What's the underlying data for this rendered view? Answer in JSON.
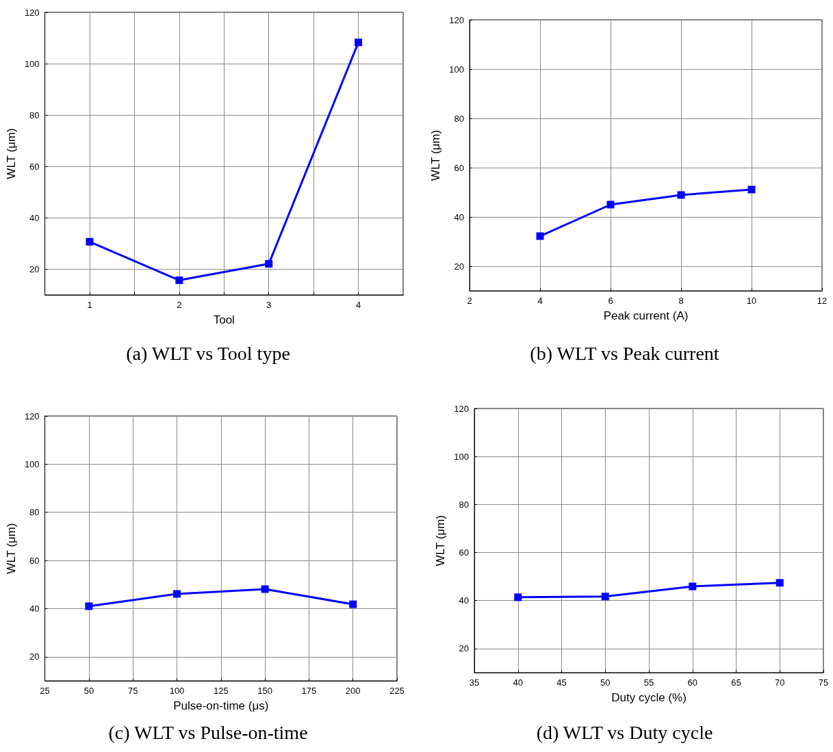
{
  "chart_data": [
    {
      "type": "line",
      "title": "(a) WLT vs Tool type",
      "xlabel": "Tool",
      "ylabel": "WLT (μm)",
      "x": [
        1,
        2,
        3,
        4
      ],
      "series": [
        {
          "color": "#0000ff",
          "values": [
            30.7,
            15.7,
            22.1,
            108.3
          ]
        }
      ],
      "xlim": [
        0.5,
        4.5
      ],
      "xticks": [
        1,
        {
          "value": 1.5,
          "label": null
        },
        2,
        {
          "value": 2.5,
          "label": null
        },
        3,
        {
          "value": 3.5,
          "label": null
        },
        4
      ],
      "ylim": [
        10,
        120
      ],
      "yticks": [
        20,
        40,
        60,
        80,
        100,
        120
      ],
      "grid": true,
      "marker": "square",
      "line_style": "solid"
    },
    {
      "type": "line",
      "title": "(b) WLT vs Peak current",
      "xlabel": "Peak current (A)",
      "ylabel": "WLT (μm)",
      "x": [
        4,
        6,
        8,
        10
      ],
      "series": [
        {
          "color": "#0000ff",
          "values": [
            32.2,
            45,
            48.9,
            51.1
          ]
        }
      ],
      "xlim": [
        2,
        12
      ],
      "xticks": [
        2,
        4,
        6,
        8,
        10,
        12
      ],
      "ylim": [
        10,
        120
      ],
      "yticks": [
        20,
        40,
        60,
        80,
        100,
        120
      ],
      "grid": true,
      "marker": "square",
      "line_style": "solid"
    },
    {
      "type": "line",
      "title": "(c) WLT vs Pulse-on-time",
      "xlabel": "Pulse-on-time (μs)",
      "ylabel": "WLT (μm)",
      "x": [
        50,
        100,
        150,
        200
      ],
      "series": [
        {
          "color": "#0000ff",
          "values": [
            41,
            46.1,
            48.1,
            41.8
          ]
        }
      ],
      "xlim": [
        25,
        225
      ],
      "xticks": [
        25,
        50,
        75,
        100,
        125,
        150,
        175,
        200,
        225
      ],
      "ylim": [
        10,
        120
      ],
      "yticks": [
        20,
        40,
        60,
        80,
        100,
        120
      ],
      "grid": true,
      "marker": "square",
      "line_style": "solid"
    },
    {
      "type": "line",
      "title": "(d) WLT vs Duty cycle",
      "xlabel": "Duty cycle (%)",
      "ylabel": "WLT (μm)",
      "x": [
        40,
        50,
        60,
        70
      ],
      "series": [
        {
          "color": "#0000ff",
          "values": [
            41.4,
            41.7,
            45.9,
            47.4
          ]
        }
      ],
      "xlim": [
        35,
        75
      ],
      "xticks": [
        35,
        40,
        45,
        50,
        55,
        60,
        65,
        70,
        75
      ],
      "ylim": [
        10,
        120
      ],
      "yticks": [
        20,
        40,
        60,
        80,
        100,
        120
      ],
      "grid": true,
      "marker": "square",
      "line_style": "solid"
    }
  ]
}
